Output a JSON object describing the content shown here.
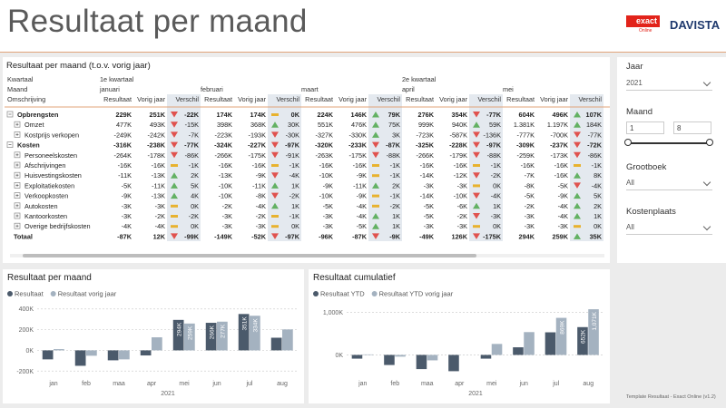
{
  "header": {
    "title": "Resultaat per maand",
    "logo_exact": "exact",
    "logo_online": "Online",
    "logo_davista": "DAVISTA"
  },
  "matrix": {
    "title": "Resultaat per maand (t.o.v. vorig jaar)",
    "row_headers": [
      "Kwartaal",
      "Maand",
      "Omschrijving"
    ],
    "quarters": [
      {
        "label": "1e kwartaal",
        "months": [
          "januari",
          "februari",
          "maart"
        ]
      },
      {
        "label": "2e kwartaal",
        "months": [
          "april",
          "mei"
        ]
      }
    ],
    "columns": [
      "Resultaat",
      "Vorig jaar",
      "Verschil"
    ],
    "rows": [
      {
        "label": "Opbrengsten",
        "kind": "group",
        "cells": [
          [
            "229K",
            "251K",
            "-22K"
          ],
          [
            "174K",
            "174K",
            "0K"
          ],
          [
            "224K",
            "146K",
            "79K"
          ],
          [
            "276K",
            "354K",
            "-77K"
          ],
          [
            "604K",
            "496K",
            "107K"
          ]
        ],
        "icons": [
          "down",
          "flat",
          "up",
          "down",
          "up"
        ]
      },
      {
        "label": "Omzet",
        "kind": "item",
        "cells": [
          [
            "477K",
            "493K",
            "-15K"
          ],
          [
            "398K",
            "368K",
            "30K"
          ],
          [
            "551K",
            "476K",
            "75K"
          ],
          [
            "999K",
            "940K",
            "59K"
          ],
          [
            "1.381K",
            "1.197K",
            "184K"
          ]
        ],
        "icons": [
          "down",
          "up",
          "up",
          "up",
          "up"
        ]
      },
      {
        "label": "Kostprijs verkopen",
        "kind": "item",
        "cells": [
          [
            "-249K",
            "-242K",
            "-7K"
          ],
          [
            "-223K",
            "-193K",
            "-30K"
          ],
          [
            "-327K",
            "-330K",
            "3K"
          ],
          [
            "-723K",
            "-587K",
            "-136K"
          ],
          [
            "-777K",
            "-700K",
            "-77K"
          ]
        ],
        "icons": [
          "down",
          "down",
          "up",
          "down",
          "down"
        ]
      },
      {
        "label": "Kosten",
        "kind": "group",
        "cells": [
          [
            "-316K",
            "-238K",
            "-77K"
          ],
          [
            "-324K",
            "-227K",
            "-97K"
          ],
          [
            "-320K",
            "-233K",
            "-87K"
          ],
          [
            "-325K",
            "-228K",
            "-97K"
          ],
          [
            "-309K",
            "-237K",
            "-72K"
          ]
        ],
        "icons": [
          "down",
          "down",
          "down",
          "down",
          "down"
        ]
      },
      {
        "label": "Personeelskosten",
        "kind": "item",
        "cells": [
          [
            "-264K",
            "-178K",
            "-86K"
          ],
          [
            "-266K",
            "-175K",
            "-91K"
          ],
          [
            "-263K",
            "-175K",
            "-88K"
          ],
          [
            "-266K",
            "-179K",
            "-88K"
          ],
          [
            "-259K",
            "-173K",
            "-86K"
          ]
        ],
        "icons": [
          "down",
          "down",
          "down",
          "down",
          "down"
        ]
      },
      {
        "label": "Afschrijvingen",
        "kind": "item",
        "cells": [
          [
            "-16K",
            "-16K",
            "-1K"
          ],
          [
            "-16K",
            "-16K",
            "-1K"
          ],
          [
            "-16K",
            "-16K",
            "-1K"
          ],
          [
            "-16K",
            "-16K",
            "-1K"
          ],
          [
            "-16K",
            "-16K",
            "-1K"
          ]
        ],
        "icons": [
          "flat",
          "flat",
          "flat",
          "flat",
          "flat"
        ]
      },
      {
        "label": "Huisvestingskosten",
        "kind": "item",
        "cells": [
          [
            "-11K",
            "-13K",
            "2K"
          ],
          [
            "-13K",
            "-9K",
            "-4K"
          ],
          [
            "-10K",
            "-9K",
            "-1K"
          ],
          [
            "-14K",
            "-12K",
            "-2K"
          ],
          [
            "-7K",
            "-16K",
            "8K"
          ]
        ],
        "icons": [
          "up",
          "down",
          "flat",
          "down",
          "up"
        ]
      },
      {
        "label": "Exploitatiekosten",
        "kind": "item",
        "cells": [
          [
            "-5K",
            "-11K",
            "5K"
          ],
          [
            "-10K",
            "-11K",
            "1K"
          ],
          [
            "-9K",
            "-11K",
            "2K"
          ],
          [
            "-3K",
            "-3K",
            "0K"
          ],
          [
            "-8K",
            "-5K",
            "-4K"
          ]
        ],
        "icons": [
          "up",
          "up",
          "up",
          "flat",
          "down"
        ]
      },
      {
        "label": "Verkoopkosten",
        "kind": "item",
        "cells": [
          [
            "-9K",
            "-13K",
            "4K"
          ],
          [
            "-10K",
            "-8K",
            "-2K"
          ],
          [
            "-10K",
            "-9K",
            "-1K"
          ],
          [
            "-14K",
            "-10K",
            "-4K"
          ],
          [
            "-5K",
            "-9K",
            "5K"
          ]
        ],
        "icons": [
          "up",
          "down",
          "flat",
          "down",
          "up"
        ]
      },
      {
        "label": "Autokosten",
        "kind": "item",
        "cells": [
          [
            "-3K",
            "-3K",
            "0K"
          ],
          [
            "-2K",
            "-4K",
            "1K"
          ],
          [
            "-5K",
            "-4K",
            "-2K"
          ],
          [
            "-5K",
            "-6K",
            "1K"
          ],
          [
            "-2K",
            "-4K",
            "2K"
          ]
        ],
        "icons": [
          "flat",
          "up",
          "flat",
          "up",
          "up"
        ]
      },
      {
        "label": "Kantoorkosten",
        "kind": "item",
        "cells": [
          [
            "-3K",
            "-2K",
            "-2K"
          ],
          [
            "-3K",
            "-2K",
            "-1K"
          ],
          [
            "-3K",
            "-4K",
            "1K"
          ],
          [
            "-5K",
            "-2K",
            "-3K"
          ],
          [
            "-3K",
            "-4K",
            "1K"
          ]
        ],
        "icons": [
          "flat",
          "flat",
          "up",
          "down",
          "up"
        ]
      },
      {
        "label": "Overige bedrijfskosten",
        "kind": "item",
        "cells": [
          [
            "-4K",
            "-4K",
            "0K"
          ],
          [
            "-3K",
            "-3K",
            "0K"
          ],
          [
            "-3K",
            "-5K",
            "1K"
          ],
          [
            "-3K",
            "-3K",
            "0K"
          ],
          [
            "-3K",
            "-3K",
            "0K"
          ]
        ],
        "icons": [
          "flat",
          "flat",
          "up",
          "flat",
          "flat"
        ]
      },
      {
        "label": "Totaal",
        "kind": "total",
        "cells": [
          [
            "-87K",
            "12K",
            "-99K"
          ],
          [
            "-149K",
            "-52K",
            "-97K"
          ],
          [
            "-96K",
            "-87K",
            "-9K"
          ],
          [
            "-49K",
            "126K",
            "-175K"
          ],
          [
            "294K",
            "259K",
            "35K"
          ]
        ],
        "icons": [
          "down",
          "down",
          "down",
          "down",
          "up"
        ]
      }
    ]
  },
  "filters": {
    "jaar": {
      "label": "Jaar",
      "value": "2021"
    },
    "maand": {
      "label": "Maand",
      "from": "1",
      "to": "8"
    },
    "grootboek": {
      "label": "Grootboek",
      "value": "All"
    },
    "kostenplaats": {
      "label": "Kostenplaats",
      "value": "All"
    }
  },
  "footer": "Template Resultaat - Exact Online (v1.2)",
  "chart_data": [
    {
      "type": "bar",
      "title": "Resultaat per maand",
      "xlabel": "2021",
      "categories": [
        "jan",
        "feb",
        "maa",
        "apr",
        "mei",
        "jun",
        "jul",
        "aug"
      ],
      "series": [
        {
          "name": "Resultaat",
          "color": "#4b5a6b",
          "values": [
            -87000,
            -149000,
            -96000,
            -49000,
            294000,
            266000,
            351000,
            122000
          ],
          "value_labels": [
            null,
            null,
            null,
            null,
            "294K",
            "266K",
            "351K",
            null
          ]
        },
        {
          "name": "Resultaat vorig jaar",
          "color": "#a4b2c0",
          "values": [
            12000,
            -52000,
            -87000,
            126000,
            259000,
            277000,
            334000,
            202000
          ],
          "value_labels": [
            null,
            null,
            null,
            null,
            "259K",
            "277K",
            "334K",
            null
          ]
        }
      ],
      "ylim": [
        -250000,
        450000
      ],
      "yticks": [
        {
          "value": -200000,
          "label": "-200K"
        },
        {
          "value": 0,
          "label": "0K"
        },
        {
          "value": 200000,
          "label": "200K"
        },
        {
          "value": 400000,
          "label": "400K"
        }
      ],
      "grid": true
    },
    {
      "type": "bar",
      "title": "Resultaat cumulatief",
      "xlabel": "2021",
      "categories": [
        "jan",
        "feb",
        "maa",
        "apr",
        "mei",
        "jun",
        "jul",
        "aug"
      ],
      "series": [
        {
          "name": "Resultaat YTD",
          "color": "#4b5a6b",
          "values": [
            -87000,
            -236000,
            -332000,
            -381000,
            -87000,
            179000,
            530000,
            652000
          ],
          "value_labels": [
            null,
            null,
            null,
            null,
            null,
            null,
            null,
            "652K"
          ]
        },
        {
          "name": "Resultaat YTD vorig jaar",
          "color": "#a4b2c0",
          "values": [
            12000,
            -40000,
            -127000,
            -1000,
            258000,
            535000,
            869000,
            1071000
          ],
          "value_labels": [
            null,
            null,
            null,
            null,
            null,
            null,
            "869K",
            "1,071K"
          ]
        }
      ],
      "ylim": [
        -500000,
        1200000
      ],
      "yticks": [
        {
          "value": 0,
          "label": "0K"
        },
        {
          "value": 1000000,
          "label": "1,000K"
        }
      ],
      "grid": true
    }
  ]
}
